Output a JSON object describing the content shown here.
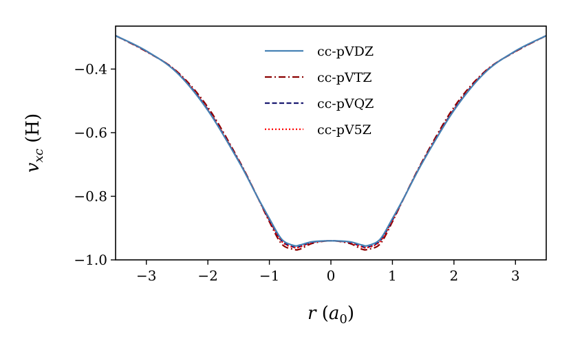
{
  "chart_data": {
    "type": "line",
    "xlabel": "r (a0)",
    "ylabel": "v_xc (H)",
    "xlim": [
      -3.5,
      3.5
    ],
    "ylim": [
      -1.0,
      -0.265
    ],
    "xticks": [
      -3,
      -2,
      -1,
      0,
      1,
      2,
      3
    ],
    "xtick_labels": [
      "−3",
      "−2",
      "−1",
      "0",
      "1",
      "2",
      "3"
    ],
    "yticks": [
      -1.0,
      -0.8,
      -0.6,
      -0.4
    ],
    "ytick_labels": [
      "−1.0",
      "−0.8",
      "−0.6",
      "−0.4"
    ],
    "grid": false,
    "legend_position": "top-center",
    "series": [
      {
        "name": "cc-pVDZ",
        "color": "#4682b4",
        "style": "solid",
        "x": [
          -3.5,
          -3.0,
          -2.5,
          -2.0,
          -1.5,
          -1.2,
          -1.0,
          -0.8,
          -0.6,
          -0.5,
          -0.3,
          0.0,
          0.3,
          0.5,
          0.6,
          0.8,
          1.0,
          1.2,
          1.5,
          2.0,
          2.5,
          3.0,
          3.5
        ],
        "y": [
          -0.295,
          -0.343,
          -0.412,
          -0.53,
          -0.69,
          -0.8,
          -0.87,
          -0.935,
          -0.955,
          -0.953,
          -0.943,
          -0.94,
          -0.943,
          -0.953,
          -0.955,
          -0.935,
          -0.87,
          -0.8,
          -0.69,
          -0.53,
          -0.412,
          -0.343,
          -0.295
        ]
      },
      {
        "name": "cc-pVTZ",
        "color": "#8b0000",
        "style": "dashdot",
        "x": [
          -3.5,
          -3.0,
          -2.5,
          -2.0,
          -1.5,
          -1.2,
          -1.0,
          -0.8,
          -0.6,
          -0.5,
          -0.3,
          0.0,
          0.3,
          0.5,
          0.6,
          0.8,
          1.0,
          1.2,
          1.5,
          2.0,
          2.5,
          3.0,
          3.5
        ],
        "y": [
          -0.295,
          -0.345,
          -0.408,
          -0.52,
          -0.685,
          -0.8,
          -0.88,
          -0.95,
          -0.967,
          -0.966,
          -0.948,
          -0.94,
          -0.948,
          -0.966,
          -0.967,
          -0.95,
          -0.88,
          -0.8,
          -0.685,
          -0.52,
          -0.408,
          -0.345,
          -0.295
        ]
      },
      {
        "name": "cc-pVQZ",
        "color": "#191970",
        "style": "dashed",
        "x": [
          -3.5,
          -3.0,
          -2.5,
          -2.0,
          -1.5,
          -1.2,
          -1.0,
          -0.8,
          -0.6,
          -0.5,
          -0.3,
          0.0,
          0.3,
          0.5,
          0.6,
          0.8,
          1.0,
          1.2,
          1.5,
          2.0,
          2.5,
          3.0,
          3.5
        ],
        "y": [
          -0.295,
          -0.344,
          -0.41,
          -0.527,
          -0.688,
          -0.8,
          -0.875,
          -0.94,
          -0.96,
          -0.958,
          -0.945,
          -0.94,
          -0.945,
          -0.958,
          -0.96,
          -0.94,
          -0.875,
          -0.8,
          -0.688,
          -0.527,
          -0.41,
          -0.344,
          -0.295
        ]
      },
      {
        "name": "cc-pV5Z",
        "color": "#ff0000",
        "style": "dotted",
        "x": [
          -3.5,
          -3.0,
          -2.5,
          -2.0,
          -1.5,
          -1.2,
          -1.0,
          -0.8,
          -0.6,
          -0.5,
          -0.3,
          0.0,
          0.3,
          0.5,
          0.6,
          0.8,
          1.0,
          1.2,
          1.5,
          2.0,
          2.5,
          3.0,
          3.5
        ],
        "y": [
          -0.295,
          -0.344,
          -0.41,
          -0.527,
          -0.688,
          -0.8,
          -0.875,
          -0.942,
          -0.961,
          -0.959,
          -0.945,
          -0.94,
          -0.945,
          -0.959,
          -0.961,
          -0.942,
          -0.875,
          -0.8,
          -0.688,
          -0.527,
          -0.41,
          -0.344,
          -0.295
        ]
      }
    ]
  }
}
